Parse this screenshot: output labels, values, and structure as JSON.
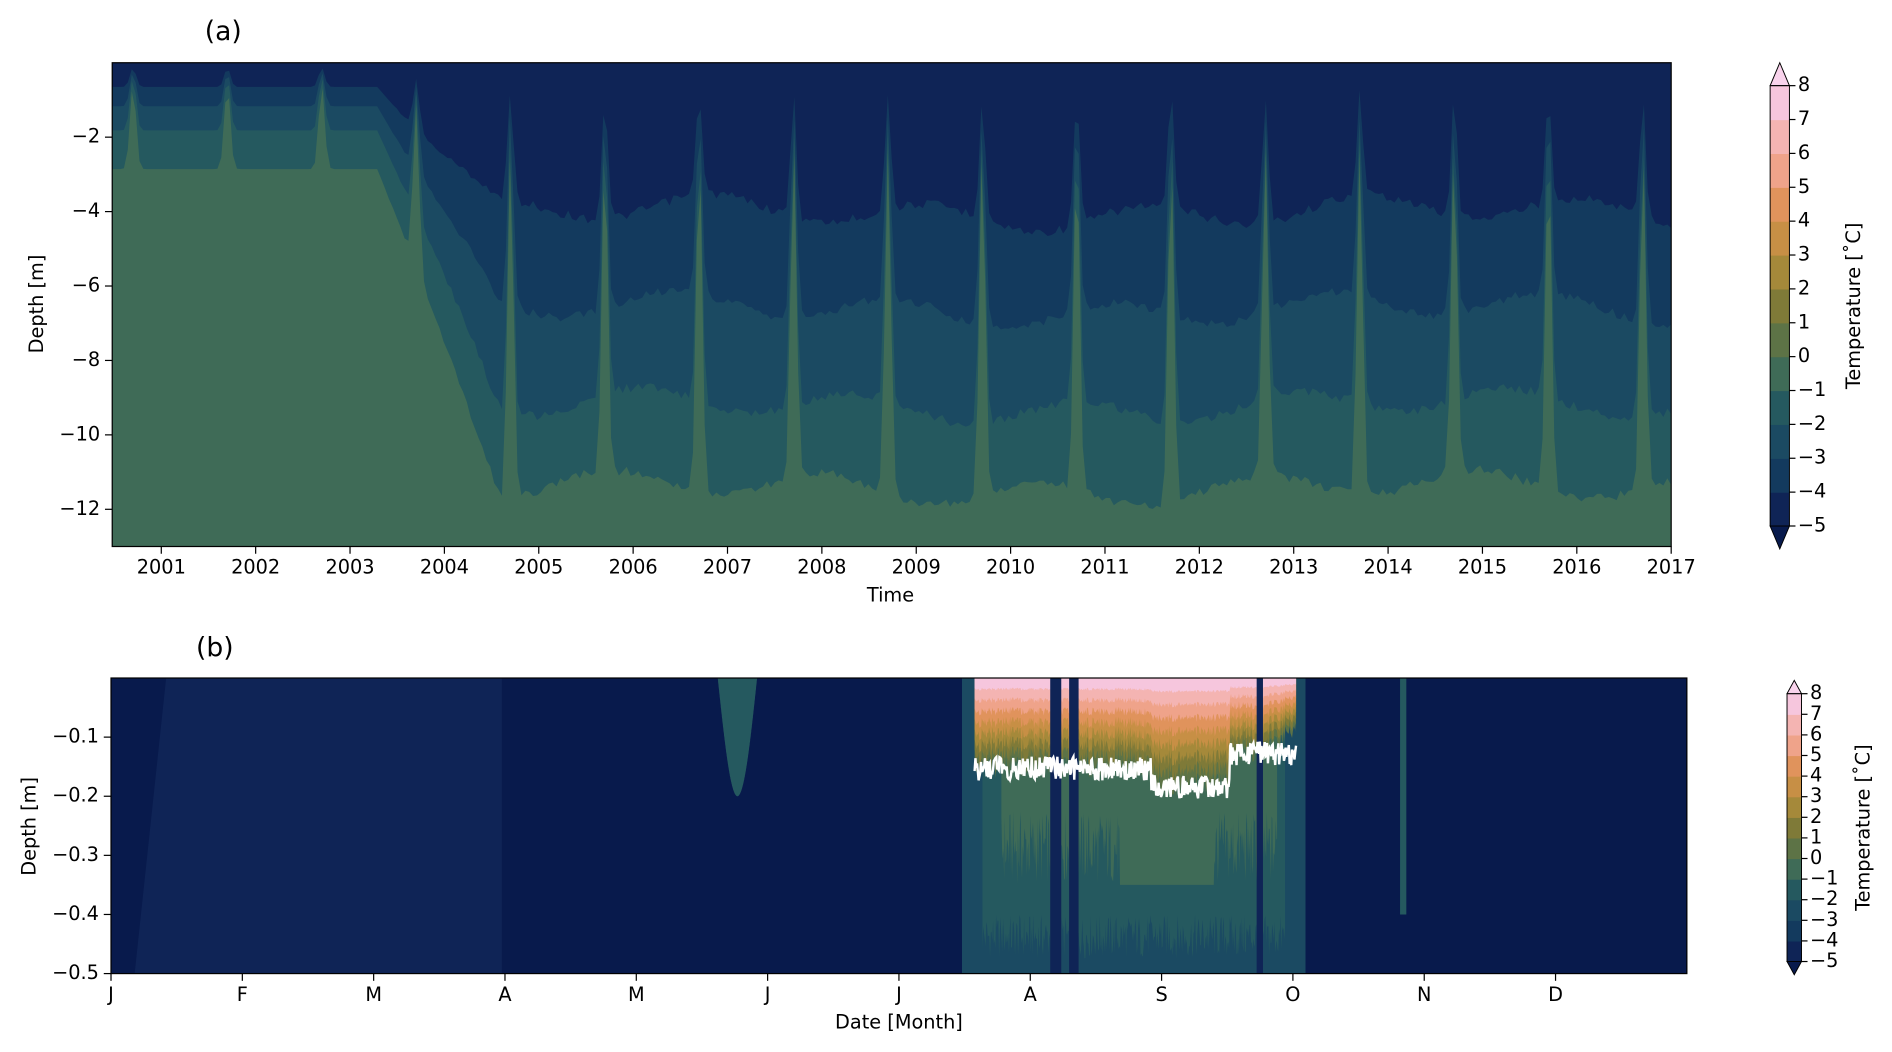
{
  "chart_data": [
    {
      "type": "contour",
      "title": "(a)",
      "xlabel": "Time",
      "ylabel": "Depth [m]",
      "xlim": [
        2000.48,
        2017
      ],
      "xticks": [
        2001,
        2002,
        2003,
        2004,
        2005,
        2006,
        2007,
        2008,
        2009,
        2010,
        2011,
        2012,
        2013,
        2014,
        2015,
        2016,
        2017
      ],
      "ylim": [
        -13,
        0
      ],
      "yticks": [
        {
          "value": -12,
          "label": "−12"
        },
        {
          "value": -10,
          "label": "−10"
        },
        {
          "value": -8,
          "label": "−8"
        },
        {
          "value": -6,
          "label": "−6"
        },
        {
          "value": -4,
          "label": "−4"
        },
        {
          "value": -2,
          "label": "−2"
        }
      ],
      "colorbar": {
        "label": "Temperature [˚C]",
        "ticks": [
          {
            "value": -5,
            "label": "−5"
          },
          {
            "value": -4,
            "label": "−4"
          },
          {
            "value": -3,
            "label": "−3"
          },
          {
            "value": -2,
            "label": "−2"
          },
          {
            "value": -1,
            "label": "−1"
          },
          0,
          1,
          2,
          3,
          4,
          5,
          6,
          7,
          8
        ],
        "colors": [
          "#0f2456",
          "#133a5e",
          "#1b4a62",
          "#25595f",
          "#3f6b57",
          "#5d7346",
          "#7f7a38",
          "#a5893a",
          "#c78f45",
          "#e0935c",
          "#efa38a",
          "#f4b4b2",
          "#f6c6dd"
        ],
        "extend_colors": [
          "#081a4c",
          "#f9d3ec"
        ]
      }
    },
    {
      "type": "contour",
      "title": "(b)",
      "xlabel": "Date [Month]",
      "ylabel": "Depth [m]",
      "categories": [
        "J",
        "F",
        "M",
        "A",
        "M",
        "J",
        "J",
        "A",
        "S",
        "O",
        "N",
        "D"
      ],
      "ylim": [
        -0.5,
        0
      ],
      "yticks": [
        {
          "value": -0.5,
          "label": "−0.5"
        },
        {
          "value": -0.4,
          "label": "−0.4"
        },
        {
          "value": -0.3,
          "label": "−0.3"
        },
        {
          "value": -0.2,
          "label": "−0.2"
        },
        {
          "value": -0.1,
          "label": "−0.1"
        }
      ],
      "colorbar": {
        "label": "Temperature [˚C]",
        "ticks": [
          {
            "value": -5,
            "label": "−5"
          },
          {
            "value": -4,
            "label": "−4"
          },
          {
            "value": -3,
            "label": "−3"
          },
          {
            "value": -2,
            "label": "−2"
          },
          {
            "value": -1,
            "label": "−1"
          },
          0,
          1,
          2,
          3,
          4,
          5,
          6,
          7,
          8
        ],
        "colors": [
          "#0f2456",
          "#133a5e",
          "#1b4a62",
          "#25595f",
          "#3f6b57",
          "#5d7346",
          "#7f7a38",
          "#a5893a",
          "#c78f45",
          "#e0935c",
          "#efa38a",
          "#f4b4b2",
          "#f6c6dd"
        ],
        "extend_colors": [
          "#081a4c",
          "#f9d3ec"
        ]
      }
    }
  ]
}
